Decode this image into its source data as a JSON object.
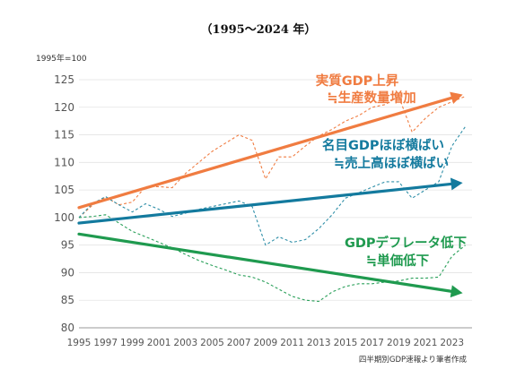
{
  "chart_data": {
    "type": "line",
    "title": "（1995〜2024 年）",
    "ylabel": "1995年=100",
    "source": "四半期別GDP速報より筆者作成",
    "ylim": [
      80,
      125
    ],
    "y_ticks": [
      80,
      85,
      90,
      95,
      100,
      105,
      110,
      115,
      120,
      125
    ],
    "x_tick_labels": [
      "1995",
      "1997",
      "1999",
      "2001",
      "2003",
      "2005",
      "2007",
      "2009",
      "2011",
      "2013",
      "2015",
      "2017",
      "2019",
      "2021",
      "2023"
    ],
    "xlim": [
      1995,
      2024.5
    ],
    "grid": true,
    "series": [
      {
        "id": "real",
        "style": "dashed",
        "color": "#f07c41",
        "x": [
          1995,
          1996,
          1997,
          1998,
          1999,
          2000,
          2001,
          2002,
          2003,
          2004,
          2005,
          2006,
          2007,
          2008,
          2009,
          2010,
          2011,
          2012,
          2013,
          2014,
          2015,
          2016,
          2017,
          2018,
          2019,
          2020,
          2021,
          2022,
          2023,
          2024
        ],
        "values": [
          100,
          102.2,
          103.7,
          102.3,
          102.8,
          105.6,
          105.6,
          105.4,
          108.0,
          110.0,
          112.0,
          113.5,
          115.0,
          114.0,
          107.0,
          111.0,
          111.0,
          113.0,
          114.8,
          116.0,
          117.5,
          118.5,
          120.0,
          120.5,
          122.0,
          115.5,
          118.0,
          120.0,
          121.0,
          122.0
        ]
      },
      {
        "id": "nominal",
        "style": "dashed",
        "color": "#2f8fa8",
        "x": [
          1995,
          1996,
          1997,
          1998,
          1999,
          2000,
          2001,
          2002,
          2003,
          2004,
          2005,
          2006,
          2007,
          2008,
          2009,
          2010,
          2011,
          2012,
          2013,
          2014,
          2015,
          2016,
          2017,
          2018,
          2019,
          2020,
          2021,
          2022,
          2023,
          2024
        ],
        "values": [
          100,
          102.5,
          103.8,
          102.3,
          101.0,
          102.5,
          101.5,
          100.2,
          100.8,
          101.5,
          102.0,
          102.5,
          103.0,
          102.0,
          95.0,
          96.5,
          95.5,
          96.0,
          98.0,
          100.5,
          103.5,
          104.5,
          105.5,
          106.5,
          106.5,
          103.5,
          105.0,
          106.5,
          113.0,
          116.5
        ]
      },
      {
        "id": "deflator",
        "style": "dashed",
        "color": "#2aa05a",
        "x": [
          1995,
          1996,
          1997,
          1998,
          1999,
          2000,
          2001,
          2002,
          2003,
          2004,
          2005,
          2006,
          2007,
          2008,
          2009,
          2010,
          2011,
          2012,
          2013,
          2014,
          2015,
          2016,
          2017,
          2018,
          2019,
          2020,
          2021,
          2022,
          2023,
          2024
        ],
        "values": [
          100,
          100.2,
          100.5,
          99.0,
          97.5,
          96.5,
          95.5,
          94.5,
          93.3,
          92.2,
          91.3,
          90.5,
          89.6,
          89.2,
          88.3,
          87.0,
          85.7,
          85.0,
          84.8,
          86.5,
          87.5,
          88.0,
          88.0,
          88.3,
          88.5,
          89.0,
          89.0,
          89.2,
          93.0,
          95.0
        ]
      }
    ],
    "trends": [
      {
        "id": "real_trend",
        "color": "#f07c41",
        "x": [
          1995,
          2023.8
        ],
        "values": [
          101.8,
          122.3
        ]
      },
      {
        "id": "nominal_trend",
        "color": "#137a9e",
        "x": [
          1995,
          2023.8
        ],
        "values": [
          99.0,
          106.3
        ]
      },
      {
        "id": "deflator_trend",
        "color": "#1f9a4f",
        "x": [
          1995,
          2023.8
        ],
        "values": [
          97.0,
          86.3
        ]
      }
    ],
    "annotations": [
      {
        "id": "real-line1",
        "text": "実質GDP上昇",
        "color": "#f07c41"
      },
      {
        "id": "real-line2",
        "text": "≒生産数量増加",
        "color": "#f07c41"
      },
      {
        "id": "nominal-line1",
        "text": "名目GDPほぼ横ばい",
        "color": "#137a9e"
      },
      {
        "id": "nominal-line2",
        "text": "≒売上高ほぼ横ばい",
        "color": "#137a9e"
      },
      {
        "id": "deflator-line1",
        "text": "GDPデフレータ低下",
        "color": "#1f9a4f"
      },
      {
        "id": "deflator-line2",
        "text": "≒単価低下",
        "color": "#1f9a4f"
      }
    ]
  }
}
